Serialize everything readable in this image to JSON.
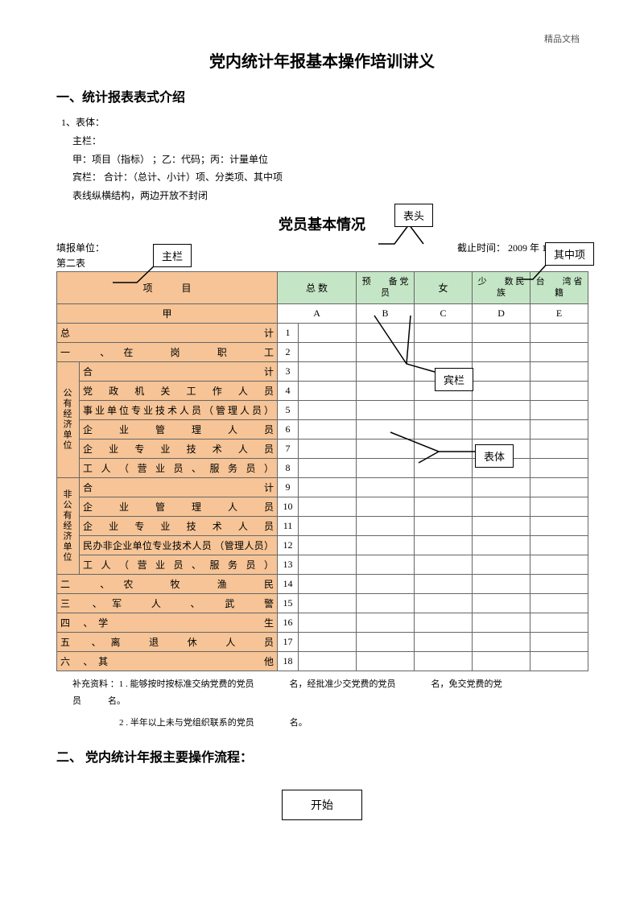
{
  "watermark": "精品文档",
  "title": "党内统计年报基本操作培训讲义",
  "section1_heading": "一、统计报表表式介绍",
  "intro": {
    "l1": "1、表体：",
    "l2": "主栏：",
    "l3": "甲：项目（指标）  ；乙：代码；丙：计量单位",
    "l4": "宾栏：          合计：（总计、小计）项、分类项、其中项",
    "l5": "表线纵横结构，两边开放不封闭"
  },
  "subtitle": "党员基本情况",
  "meta": {
    "left": "填报单位：",
    "right": "截止时间： 2009 年 12 月 31 日",
    "table_no": "第二表"
  },
  "callouts": {
    "biaotou": "表头",
    "zhulan": "主栏",
    "qizhongxiang": "其中项",
    "binlan": "宾栏",
    "biaoti": "表体"
  },
  "headers": {
    "col_project": "项　　　目",
    "col_total": "总  数",
    "col_prep": "预　　备 党　　员",
    "col_female": "女",
    "col_minority": "少　　数 民　　族",
    "col_taiwan": "台　　湾 省　　籍",
    "row2_jia": "甲",
    "row2_a": "A",
    "row2_b": "B",
    "row2_c": "C",
    "row2_d": "D",
    "row2_e": "E"
  },
  "rows": [
    {
      "num": "1",
      "label": "总　　　　　　　　　　　　　　计",
      "span": 2
    },
    {
      "num": "2",
      "label": "一 、在　岗　职　工",
      "span": 2
    },
    {
      "num": "3",
      "group": "公有经济单位",
      "label": "合　　　　　　　　　　　　计"
    },
    {
      "num": "4",
      "label": "党 政 机 关 工 作 人 员"
    },
    {
      "num": "5",
      "label": "事业单位专业技术人员（管理人员）"
    },
    {
      "num": "6",
      "label": "企 业 管 理 人 员"
    },
    {
      "num": "7",
      "label": "企 业 专 业 技 术 人 员"
    },
    {
      "num": "8",
      "label": "工 人 （ 营 业 员 、 服 务 员 ）"
    },
    {
      "num": "9",
      "group": "非公有经济单位",
      "label": "合　　　　　　　　　　　　计"
    },
    {
      "num": "10",
      "label": "企 业 管 理 人 员"
    },
    {
      "num": "11",
      "label": "企 业 专 业 技 术 人 员"
    },
    {
      "num": "12",
      "label": "民办非企业单位专业技术人员  （管理人员）"
    },
    {
      "num": "13",
      "label": "工 人 （ 营 业 员 、 服 务 员 ）"
    },
    {
      "num": "14",
      "label": "二 、农　牧　渔　民",
      "span": 2
    },
    {
      "num": "15",
      "label": "三 、军　人　、　武　警",
      "span": 2
    },
    {
      "num": "16",
      "label": "四 、学　　　　　　　　　　生",
      "span": 2
    },
    {
      "num": "17",
      "label": "五 、离　退　休　人　员",
      "span": 2
    },
    {
      "num": "18",
      "label": "六 、其　　　　　　　　　　他",
      "span": 2
    }
  ],
  "footnote": {
    "l1": "补充资料 ：1 . 能够按时按标准交纳党费的党员　　　　名，经批准少交党费的党员　　　　名，免交党费的党",
    "l1b": "员　　　名。",
    "l2": "2 . 半年以上未与党组织联系的党员　　　　名。"
  },
  "section2_heading": "二、  党内统计年报主要操作流程：",
  "start_label": "开始",
  "colors": {
    "orange": "#f6c496",
    "green": "#c5e6c6",
    "border": "#666666"
  }
}
